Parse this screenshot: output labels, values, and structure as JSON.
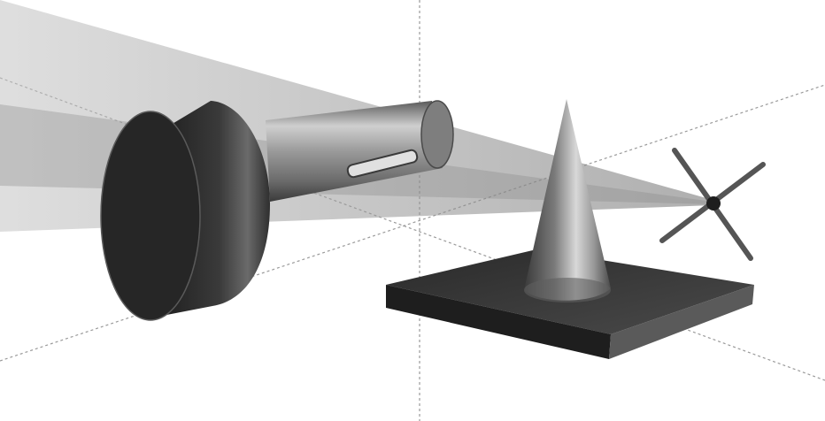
{
  "scene": {
    "colors": {
      "background": "#ffffff",
      "axis": "#9a9a9a",
      "beam": "#a9a9a9",
      "camera_body": "#3a3a3a",
      "camera_face": "#252525",
      "lens_tube": "#8c8c8c",
      "cone": "#9f9f9f",
      "base": "#3e3e3e",
      "marker": "#555555"
    },
    "objects": [
      "camera-body",
      "lens-tube",
      "projection-beam",
      "cone",
      "base-plate",
      "focal-point-marker",
      "coordinate-axes"
    ]
  }
}
